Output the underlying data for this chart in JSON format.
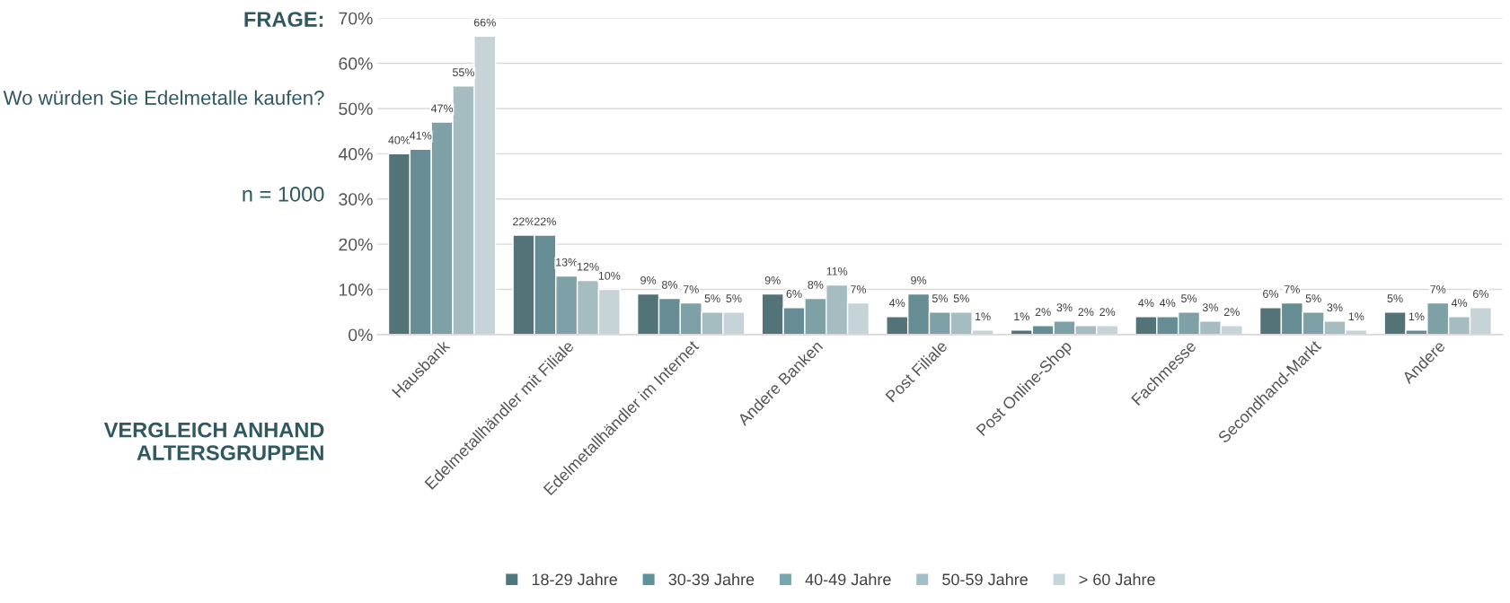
{
  "chart_data": {
    "type": "bar",
    "title": "FRAGE:",
    "subtitle": "Wo würden Sie Edelmetalle kaufen?",
    "annotations": [
      "n = 1000",
      "VERGLEICH ANHAND ALTERSGRUPPEN"
    ],
    "categories": [
      "Hausbank",
      "Edelmetallhändler mit Filiale",
      "Edelmetallhändler im Internet",
      "Andere Banken",
      "Post Filiale",
      "Post Online-Shop",
      "Fachmesse",
      "Secondhand-Markt",
      "Andere"
    ],
    "series": [
      {
        "name": "18-29 Jahre",
        "color": "#4e787e",
        "values": [
          40,
          22,
          9,
          9,
          4,
          1,
          4,
          6,
          5
        ],
        "value_labels": [
          "40%",
          "22%",
          "9%",
          "9%",
          "4%",
          "1%",
          "4%",
          "6%",
          "5%"
        ]
      },
      {
        "name": "30-39 Jahre",
        "color": "#5f939b",
        "values": [
          41,
          22,
          8,
          6,
          9,
          2,
          4,
          7,
          1
        ],
        "value_labels": [
          "41%",
          "22%",
          "8%",
          "6%",
          "9%",
          "2%",
          "4%",
          "7%",
          "1%"
        ]
      },
      {
        "name": "40-49 Jahre",
        "color": "#77a6ae",
        "values": [
          47,
          13,
          7,
          8,
          5,
          3,
          5,
          5,
          7
        ],
        "value_labels": [
          "47%",
          "13%",
          "7%",
          "8%",
          "5%",
          "3%",
          "5%",
          "5%",
          "7%"
        ]
      },
      {
        "name": "50-59 Jahre",
        "color": "#a1bfc5",
        "values": [
          55,
          12,
          5,
          11,
          5,
          2,
          3,
          3,
          4
        ],
        "value_labels": [
          "55%",
          "12%",
          "5%",
          "11%",
          "5%",
          "2%",
          "3%",
          "3%",
          "4%"
        ]
      },
      {
        "name": "> 60 Jahre",
        "color": "#c3d6da",
        "values": [
          66,
          10,
          5,
          7,
          1,
          2,
          2,
          1,
          6
        ],
        "value_labels": [
          "66%",
          "10%",
          "5%",
          "7%",
          "1%",
          "2%",
          "2%",
          "1%",
          "6%"
        ]
      }
    ],
    "ylim": [
      0,
      70
    ],
    "yticks": [
      {
        "value": 0,
        "label": "0%"
      },
      {
        "value": 10,
        "label": "10%"
      },
      {
        "value": 20,
        "label": "20%"
      },
      {
        "value": 30,
        "label": "30%"
      },
      {
        "value": 40,
        "label": "40%"
      },
      {
        "value": 50,
        "label": "50%"
      },
      {
        "value": 60,
        "label": "60%"
      },
      {
        "value": 70,
        "label": "70%"
      }
    ],
    "grid": "y",
    "legend": "bottom"
  }
}
